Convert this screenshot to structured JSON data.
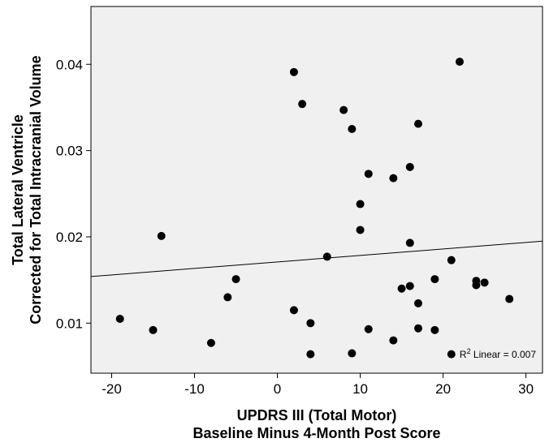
{
  "chart_data": {
    "type": "scatter",
    "xlabel_lines": [
      "UPDRS III (Total Motor)",
      "Baseline Minus 4-Month Post Score"
    ],
    "ylabel_lines": [
      "Total Lateral Ventricle",
      "Corrected for Total Intracranial Volume"
    ],
    "xlim": [
      -22.5,
      32
    ],
    "ylim": [
      0.0042,
      0.0467
    ],
    "x_ticks": [
      -20,
      -10,
      0,
      10,
      20,
      30
    ],
    "x_tick_labels": [
      "-20",
      "-10",
      "0",
      "10",
      "20",
      "30"
    ],
    "y_ticks": [
      0.01,
      0.02,
      0.03,
      0.04
    ],
    "y_tick_labels": [
      "0.01",
      "0.02",
      "0.03",
      "0.04"
    ],
    "grid": false,
    "background": "#f0f0f0",
    "marker_color": "#000000",
    "points": [
      {
        "x": -19,
        "y": 0.0105
      },
      {
        "x": -15,
        "y": 0.0092
      },
      {
        "x": -14,
        "y": 0.0201
      },
      {
        "x": -8,
        "y": 0.0077
      },
      {
        "x": -6,
        "y": 0.013
      },
      {
        "x": -5,
        "y": 0.0151
      },
      {
        "x": 2,
        "y": 0.0391
      },
      {
        "x": 2,
        "y": 0.0115
      },
      {
        "x": 3,
        "y": 0.0354
      },
      {
        "x": 4,
        "y": 0.01
      },
      {
        "x": 4,
        "y": 0.0064
      },
      {
        "x": 6,
        "y": 0.0177
      },
      {
        "x": 8,
        "y": 0.0347
      },
      {
        "x": 9,
        "y": 0.0325
      },
      {
        "x": 9,
        "y": 0.0065
      },
      {
        "x": 10,
        "y": 0.0238
      },
      {
        "x": 10,
        "y": 0.0208
      },
      {
        "x": 11,
        "y": 0.0273
      },
      {
        "x": 11,
        "y": 0.0093
      },
      {
        "x": 14,
        "y": 0.0268
      },
      {
        "x": 14,
        "y": 0.008
      },
      {
        "x": 15,
        "y": 0.014
      },
      {
        "x": 16,
        "y": 0.0281
      },
      {
        "x": 16,
        "y": 0.0193
      },
      {
        "x": 16,
        "y": 0.0143
      },
      {
        "x": 17,
        "y": 0.0331
      },
      {
        "x": 17,
        "y": 0.0123
      },
      {
        "x": 17,
        "y": 0.0094
      },
      {
        "x": 19,
        "y": 0.0151
      },
      {
        "x": 19,
        "y": 0.0092
      },
      {
        "x": 21,
        "y": 0.0173
      },
      {
        "x": 21,
        "y": 0.0064
      },
      {
        "x": 22,
        "y": 0.0403
      },
      {
        "x": 24,
        "y": 0.0149
      },
      {
        "x": 24,
        "y": 0.0144
      },
      {
        "x": 25,
        "y": 0.0147
      },
      {
        "x": 28,
        "y": 0.0128
      }
    ],
    "fit_line": {
      "x": [
        -22.5,
        32
      ],
      "y": [
        0.0154,
        0.0195
      ]
    },
    "annotation": {
      "base": "R",
      "sup": "2",
      "text": " Linear = 0.007"
    }
  }
}
